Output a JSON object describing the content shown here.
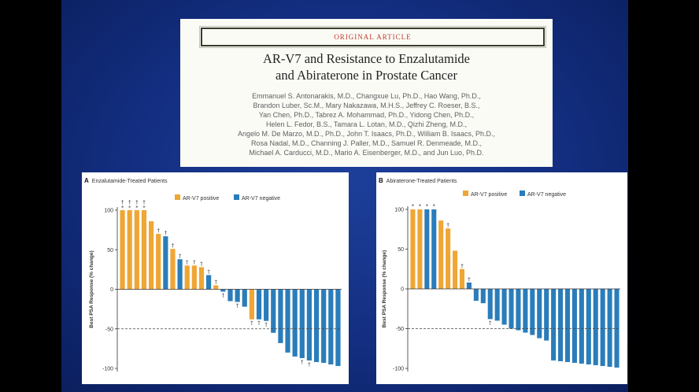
{
  "article": {
    "banner": "ORIGINAL ARTICLE",
    "title_lines": [
      "AR-V7 and Resistance to Enzalutamide",
      "and Abiraterone in Prostate Cancer"
    ],
    "author_lines": [
      "Emmanuel S. Antonarakis, M.D., Changxue Lu, Ph.D., Hao Wang, Ph.D.,",
      "Brandon Luber, Sc.M., Mary Nakazawa, M.H.S., Jeffrey C. Roeser, B.S.,",
      "Yan Chen, Ph.D., Tabrez A. Mohammad, Ph.D., Yidong Chen, Ph.D.,",
      "Helen L. Fedor, B.S., Tamara L. Lotan, M.D., Qizhi Zheng, M.D.,",
      "Angelo M. De Marzo, M.D., Ph.D., John T. Isaacs, Ph.D., William B. Isaacs, Ph.D.,",
      "Rosa Nadal, M.D., Channing J. Paller, M.D., Samuel R. Denmeade, M.D.,",
      "Michael A. Carducci, M.D., Mario A. Eisenberger, M.D., and Jun Luo, Ph.D."
    ]
  },
  "colors": {
    "positive": "#efa634",
    "negative": "#2a7dba"
  },
  "chart_data": [
    {
      "type": "bar",
      "panel": "A",
      "title": "Enzalutamide-Treated Patients",
      "legend": [
        "AR-V7 positive",
        "AR-V7 negative"
      ],
      "ylabel": "Best PSA Response (% change)",
      "ylim": [
        -100,
        100
      ],
      "yticks": [
        100,
        50,
        0,
        -50,
        -100
      ],
      "reference_line": -50,
      "values": [
        100,
        100,
        100,
        100,
        86,
        70,
        67,
        51,
        38,
        30,
        30,
        28,
        18,
        5,
        -3,
        -15,
        -16,
        -22,
        -38,
        -38,
        -40,
        -55,
        -68,
        -80,
        -85,
        -87,
        -90,
        -92,
        -93,
        -95,
        -97
      ],
      "status": [
        "pos",
        "pos",
        "pos",
        "pos",
        "pos",
        "pos",
        "neg",
        "pos",
        "neg",
        "pos",
        "pos",
        "pos",
        "neg",
        "pos",
        "neg",
        "neg",
        "neg",
        "neg",
        "pos",
        "neg",
        "neg",
        "neg",
        "neg",
        "neg",
        "neg",
        "neg",
        "neg",
        "neg",
        "neg",
        "neg",
        "neg"
      ],
      "marks": [
        "* †",
        "* †",
        "* †",
        "* †",
        "",
        "†",
        "†",
        "†",
        "†",
        "†",
        "†",
        "†",
        "†",
        "†",
        "†",
        "",
        "†",
        "",
        "†",
        "†",
        "†",
        "",
        "",
        "",
        "",
        "†",
        "†",
        "",
        "",
        "",
        ""
      ]
    },
    {
      "type": "bar",
      "panel": "B",
      "title": "Abiraterone-Treated Patients",
      "legend": [
        "AR-V7 positive",
        "AR-V7 negative"
      ],
      "ylabel": "Best PSA Response (% change)",
      "ylim": [
        -100,
        100
      ],
      "yticks": [
        100,
        50,
        0,
        -50,
        -100
      ],
      "reference_line": -50,
      "values": [
        100,
        100,
        100,
        100,
        86,
        76,
        48,
        25,
        8,
        -15,
        -18,
        -38,
        -40,
        -45,
        -50,
        -52,
        -55,
        -58,
        -62,
        -65,
        -90,
        -91,
        -92,
        -93,
        -94,
        -95,
        -96,
        -97,
        -98,
        -99
      ],
      "status": [
        "pos",
        "pos",
        "neg",
        "neg",
        "pos",
        "pos",
        "pos",
        "pos",
        "neg",
        "neg",
        "neg",
        "neg",
        "neg",
        "neg",
        "neg",
        "neg",
        "neg",
        "neg",
        "neg",
        "neg",
        "neg",
        "neg",
        "neg",
        "neg",
        "neg",
        "neg",
        "neg",
        "neg",
        "neg",
        "neg"
      ],
      "marks": [
        "*",
        "*",
        "*",
        "*",
        "",
        "†",
        "",
        "†",
        "†",
        "",
        "",
        "†",
        "",
        "",
        "",
        "",
        "",
        "",
        "",
        "",
        "",
        "",
        "",
        "",
        "",
        "",
        "",
        "",
        "",
        ""
      ]
    }
  ]
}
